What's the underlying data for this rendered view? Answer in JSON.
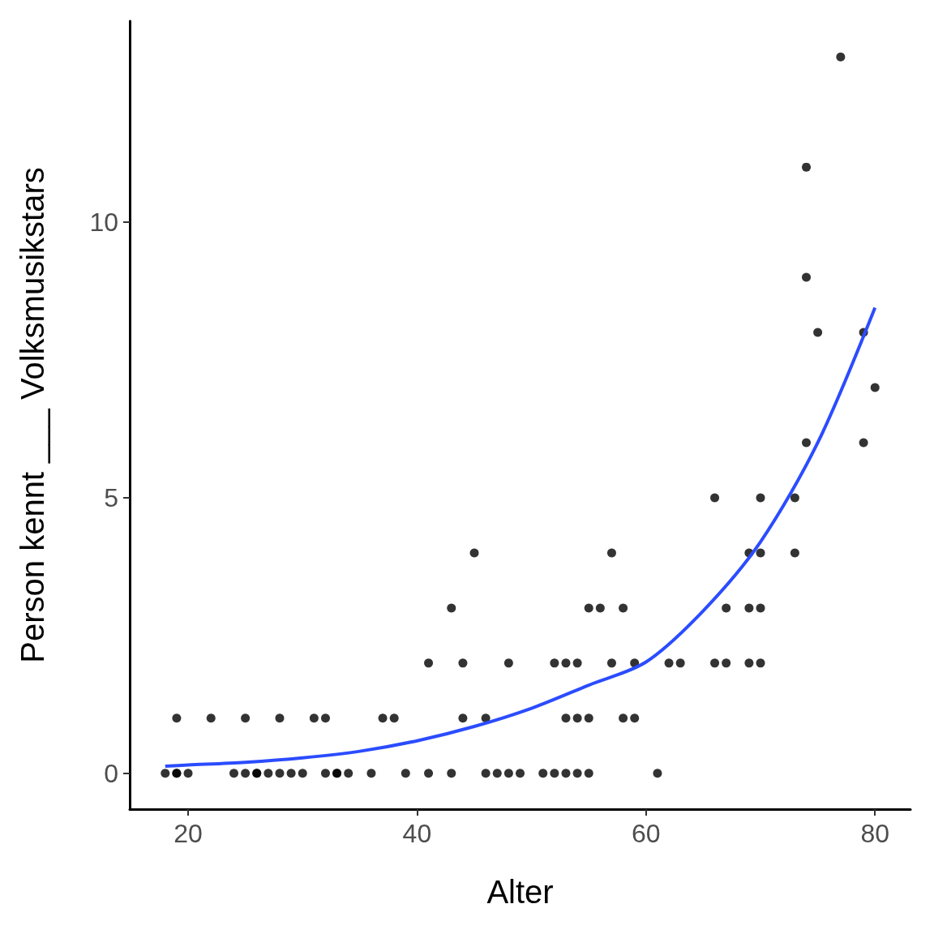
{
  "chart_data": {
    "type": "scatter",
    "xlabel": "Alter",
    "ylabel": "Person kennt ___ Volksmusikstars",
    "xlim": [
      14.9,
      83.1
    ],
    "ylim": [
      -0.65,
      13.65
    ],
    "xticks": [
      20,
      40,
      60,
      80
    ],
    "yticks": [
      0,
      5,
      10
    ],
    "grid": false,
    "marker": "circle",
    "series": [
      {
        "color": "#000000",
        "x": [
          18,
          19,
          19,
          20,
          24,
          25,
          26,
          26,
          27,
          28,
          29,
          30,
          32,
          33,
          33,
          34,
          36,
          39,
          41,
          43,
          46,
          47,
          48,
          49,
          51,
          52,
          53,
          54,
          55,
          61,
          19,
          22,
          25,
          28,
          31,
          32,
          37,
          38,
          44,
          46,
          53,
          54,
          55,
          58,
          59,
          41,
          44,
          48,
          52,
          53,
          54,
          57,
          59,
          62,
          63,
          66,
          67,
          69,
          70,
          43,
          55,
          56,
          58,
          67,
          69,
          70,
          45,
          57,
          69,
          70,
          73,
          66,
          70,
          73,
          77,
          74,
          74,
          75,
          79,
          80,
          74,
          79
        ],
        "values": [
          0,
          0,
          0,
          0,
          0,
          0,
          0,
          0,
          0,
          0,
          0,
          0,
          0,
          0,
          0,
          0,
          0,
          0,
          0,
          0,
          0,
          0,
          0,
          0,
          0,
          0,
          0,
          0,
          0,
          0,
          1,
          1,
          1,
          1,
          1,
          1,
          1,
          1,
          1,
          1,
          1,
          1,
          1,
          1,
          1,
          2,
          2,
          2,
          2,
          2,
          2,
          2,
          2,
          2,
          2,
          2,
          2,
          2,
          2,
          3,
          3,
          3,
          3,
          3,
          3,
          3,
          4,
          4,
          4,
          4,
          4,
          5,
          5,
          5,
          13,
          11,
          9,
          8,
          8,
          7,
          6,
          6
        ]
      },
      {
        "type": "line",
        "color": "#2b4cff",
        "line_style": "solid",
        "marker": "none",
        "x": [
          18,
          20,
          25,
          30,
          35,
          40,
          45,
          50,
          55,
          60,
          65,
          70,
          75,
          80
        ],
        "values": [
          0.13,
          0.15,
          0.2,
          0.28,
          0.4,
          0.59,
          0.85,
          1.18,
          1.6,
          2.02,
          2.95,
          4.2,
          6.0,
          8.45
        ]
      }
    ]
  }
}
